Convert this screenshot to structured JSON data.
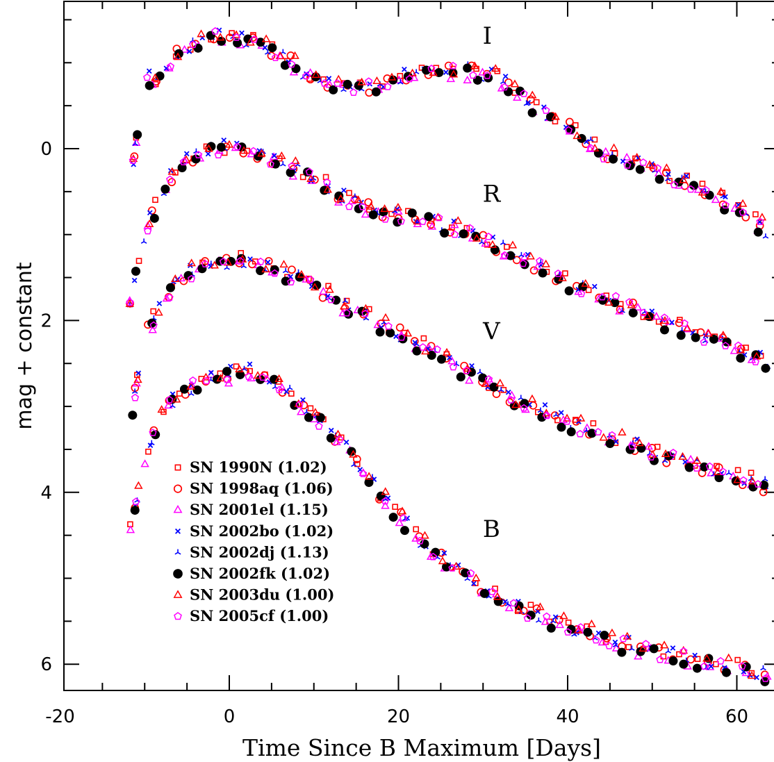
{
  "chart_data": {
    "type": "scatter",
    "xlabel": "Time Since B Maximum [Days]",
    "ylabel": "mag + constant",
    "xlim": [
      -20,
      64
    ],
    "ylim": [
      6.3,
      -1.7
    ],
    "y_inverted": true,
    "x_ticks": [
      -20,
      0,
      20,
      40,
      60
    ],
    "x_tick_labels": [
      "-20",
      "0",
      "20",
      "40",
      "60"
    ],
    "y_ticks": [
      0,
      2,
      4,
      6
    ],
    "y_tick_labels": [
      "0",
      "2",
      "4",
      "6"
    ],
    "band_labels": [
      {
        "text": "I",
        "x": 30.5,
        "y": -1.22
      },
      {
        "text": "R",
        "x": 31.0,
        "y": 0.62
      },
      {
        "text": "V",
        "x": 31.0,
        "y": 2.22
      },
      {
        "text": "B",
        "x": 31.0,
        "y": 4.52
      }
    ],
    "legend_position": "bottom-left",
    "bands": [
      {
        "name": "I",
        "curve": [
          [
            -11.8,
            0.5
          ],
          [
            -10,
            -0.8
          ],
          [
            -8,
            -0.8
          ],
          [
            -6,
            -1.12
          ],
          [
            -2,
            -1.3
          ],
          [
            2,
            -1.28
          ],
          [
            6,
            -1.1
          ],
          [
            10,
            -0.8
          ],
          [
            14,
            -0.7
          ],
          [
            18,
            -0.75
          ],
          [
            22,
            -0.85
          ],
          [
            26,
            -0.9
          ],
          [
            29,
            -0.9
          ],
          [
            32,
            -0.82
          ],
          [
            36,
            -0.5
          ],
          [
            40,
            -0.25
          ],
          [
            44,
            0.05
          ],
          [
            50,
            0.25
          ],
          [
            56,
            0.5
          ],
          [
            62,
            0.82
          ],
          [
            64,
            1.0
          ]
        ]
      },
      {
        "name": "R",
        "curve": [
          [
            -11.8,
            1.8
          ],
          [
            -10,
            1.0
          ],
          [
            -8,
            0.5
          ],
          [
            -6,
            0.2
          ],
          [
            -2,
            0.0
          ],
          [
            2,
            0.0
          ],
          [
            6,
            0.15
          ],
          [
            10,
            0.35
          ],
          [
            14,
            0.6
          ],
          [
            18,
            0.75
          ],
          [
            22,
            0.8
          ],
          [
            26,
            0.9
          ],
          [
            30,
            1.05
          ],
          [
            34,
            1.25
          ],
          [
            40,
            1.55
          ],
          [
            46,
            1.8
          ],
          [
            52,
            2.05
          ],
          [
            58,
            2.25
          ],
          [
            64,
            2.48
          ]
        ]
      },
      {
        "name": "V",
        "curve": [
          [
            -11.8,
            3.2
          ],
          [
            -10,
            2.2
          ],
          [
            -8,
            1.8
          ],
          [
            -6,
            1.5
          ],
          [
            -2,
            1.35
          ],
          [
            2,
            1.3
          ],
          [
            6,
            1.42
          ],
          [
            10,
            1.6
          ],
          [
            14,
            1.85
          ],
          [
            18,
            2.05
          ],
          [
            22,
            2.25
          ],
          [
            26,
            2.48
          ],
          [
            30,
            2.7
          ],
          [
            34,
            2.95
          ],
          [
            40,
            3.2
          ],
          [
            46,
            3.4
          ],
          [
            52,
            3.6
          ],
          [
            58,
            3.75
          ],
          [
            64,
            3.95
          ]
        ]
      },
      {
        "name": "B",
        "curve": [
          [
            -11.8,
            4.5
          ],
          [
            -10,
            3.6
          ],
          [
            -8,
            3.1
          ],
          [
            -6,
            2.85
          ],
          [
            -2,
            2.65
          ],
          [
            2,
            2.6
          ],
          [
            6,
            2.75
          ],
          [
            10,
            3.1
          ],
          [
            14,
            3.5
          ],
          [
            18,
            4.05
          ],
          [
            22,
            4.5
          ],
          [
            26,
            4.85
          ],
          [
            30,
            5.1
          ],
          [
            34,
            5.35
          ],
          [
            40,
            5.55
          ],
          [
            46,
            5.75
          ],
          [
            52,
            5.9
          ],
          [
            58,
            6.0
          ],
          [
            64,
            6.15
          ]
        ]
      }
    ],
    "series": [
      {
        "name": "SN 1990N (1.02)",
        "marker": "square",
        "color": "#ff0000"
      },
      {
        "name": "SN 1998aq (1.06)",
        "marker": "circle",
        "color": "#ff0000"
      },
      {
        "name": "SN 2001el (1.15)",
        "marker": "triangle",
        "color": "#ff00ff"
      },
      {
        "name": "SN 2002bo (1.02)",
        "marker": "cross",
        "color": "#0000ff"
      },
      {
        "name": "SN 2002dj (1.13)",
        "marker": "tri-star",
        "color": "#0000ff"
      },
      {
        "name": "SN 2002fk (1.02)",
        "marker": "filled-circle",
        "color": "#000000"
      },
      {
        "name": "SN 2003du (1.00)",
        "marker": "triangle",
        "color": "#ff0000"
      },
      {
        "name": "SN 2005cf (1.00)",
        "marker": "pentagon",
        "color": "#ff00ff"
      }
    ]
  }
}
